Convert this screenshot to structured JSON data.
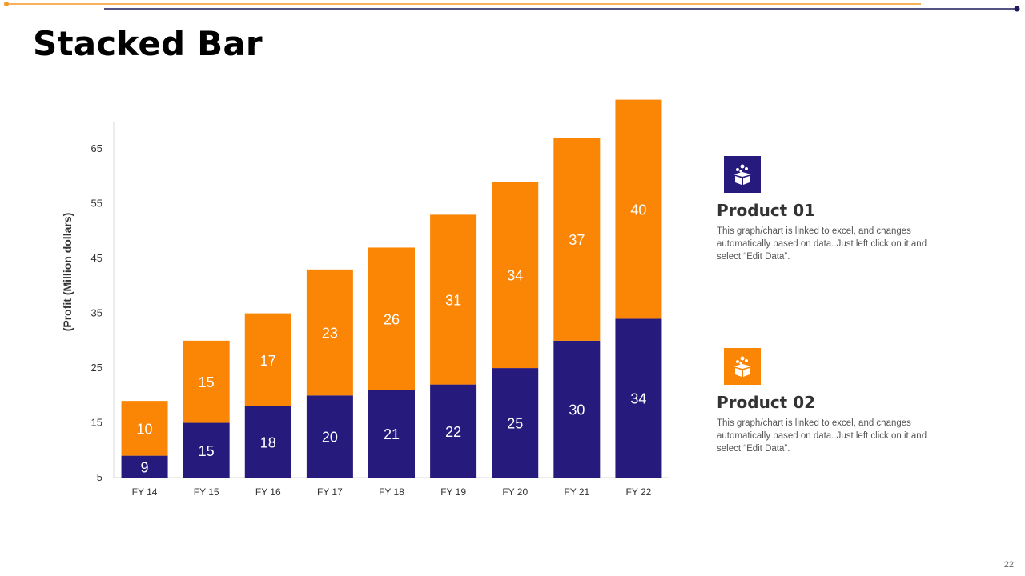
{
  "slide": {
    "title": "Stacked Bar",
    "page_number": "22"
  },
  "colors": {
    "product1": "#261A7C",
    "product2": "#FB8505",
    "axis_text": "#333333",
    "accent_line": "#F39A27",
    "dark_line": "#1F1B5C"
  },
  "legend": [
    {
      "title": "Product 01",
      "description": "This graph/chart is linked to excel, and changes automatically based on data. Just left click on it and select “Edit Data”.",
      "icon": "gift-box-icon",
      "color": "#261A7C"
    },
    {
      "title": "Product 02",
      "description": "This graph/chart is linked to excel, and changes automatically based on data. Just left click on it and select “Edit Data”.",
      "icon": "gift-box-icon",
      "color": "#FB8505"
    }
  ],
  "chart_data": {
    "type": "bar",
    "stacked": true,
    "title": "",
    "xlabel": "",
    "ylabel": "(Profit  (Million dollars)",
    "categories": [
      "FY 14",
      "FY 15",
      "FY 16",
      "FY 17",
      "FY 18",
      "FY 19",
      "FY 20",
      "FY 21",
      "FY 22"
    ],
    "series": [
      {
        "name": "Product 01",
        "color": "#261A7C",
        "values": [
          9,
          15,
          18,
          20,
          21,
          22,
          25,
          30,
          34
        ]
      },
      {
        "name": "Product 02",
        "color": "#FB8505",
        "values": [
          10,
          15,
          17,
          23,
          26,
          31,
          34,
          37,
          40
        ]
      }
    ],
    "yticks": [
      5,
      15,
      25,
      35,
      45,
      55,
      65
    ],
    "ylim": [
      5,
      70
    ],
    "grid": false
  }
}
